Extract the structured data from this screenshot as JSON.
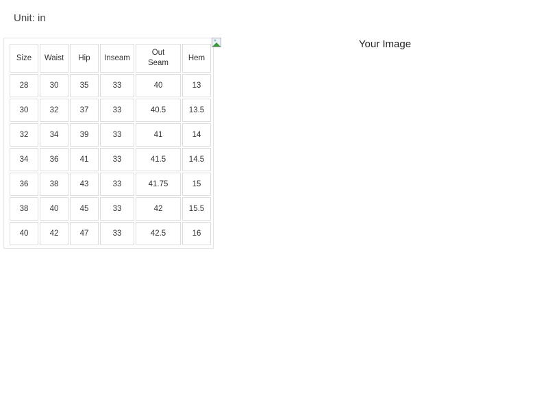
{
  "unit_label": "Unit: in",
  "table": {
    "headers": [
      "Size",
      "Waist",
      "Hip",
      "Inseam",
      "Out Seam",
      "Hem"
    ],
    "rows": [
      [
        "28",
        "30",
        "35",
        "33",
        "40",
        "13"
      ],
      [
        "30",
        "32",
        "37",
        "33",
        "40.5",
        "13.5"
      ],
      [
        "32",
        "34",
        "39",
        "33",
        "41",
        "14"
      ],
      [
        "34",
        "36",
        "41",
        "33",
        "41.5",
        "14.5"
      ],
      [
        "36",
        "38",
        "43",
        "33",
        "41.75",
        "15"
      ],
      [
        "38",
        "40",
        "45",
        "33",
        "42",
        "15.5"
      ],
      [
        "40",
        "42",
        "47",
        "33",
        "42.5",
        "16"
      ]
    ]
  },
  "image": {
    "alt": "Your Image",
    "icon": "broken-image-icon"
  }
}
